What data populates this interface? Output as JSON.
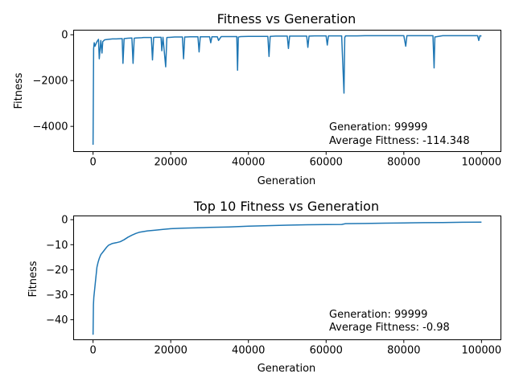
{
  "colors": {
    "series": "#1f77b4",
    "axes": "#000000",
    "background": "#ffffff"
  },
  "chart_data": [
    {
      "type": "line",
      "title": "Fitness vs Generation",
      "xlabel": "Generation",
      "ylabel": "Fitness",
      "xlim": [
        -5000,
        105000
      ],
      "ylim": [
        -5100,
        200
      ],
      "xticks": [
        0,
        20000,
        40000,
        60000,
        80000,
        100000
      ],
      "xtick_labels": [
        "0",
        "20000",
        "40000",
        "60000",
        "80000",
        "100000"
      ],
      "yticks": [
        0,
        -2000,
        -4000
      ],
      "ytick_labels": [
        "0",
        "−2000",
        "−4000"
      ],
      "annotation": [
        "Generation: 99999",
        "Average Fittness: -114.348"
      ],
      "annotation_position": "bottom-right",
      "grid": false,
      "series": [
        {
          "x": [
            0,
            150,
            300,
            500,
            1000,
            1400,
            1600,
            2000,
            2300,
            2500,
            3000,
            4000,
            5000,
            6000,
            7500,
            7700,
            8000,
            9000,
            10000,
            10300,
            10600,
            11000,
            12500,
            13000,
            15000,
            15300,
            15600,
            16000,
            17500,
            17700,
            18000,
            18700,
            19000,
            20000,
            21000,
            22000,
            23000,
            23300,
            23600,
            24000,
            25000,
            27000,
            27300,
            27600,
            28000,
            30000,
            30300,
            30600,
            32000,
            32300,
            33000,
            35000,
            36000,
            37000,
            37200,
            37400,
            38000,
            40000,
            42000,
            43000,
            45000,
            45300,
            45600,
            47000,
            50000,
            50300,
            50600,
            52000,
            55000,
            55300,
            55600,
            57000,
            60000,
            60300,
            60600,
            62000,
            64000,
            64600,
            64800,
            65000,
            66000,
            68000,
            70000,
            75000,
            78000,
            80000,
            80500,
            80800,
            82000,
            84000,
            86000,
            87500,
            87800,
            88000,
            90000,
            92000,
            95000,
            98000,
            99000,
            99300,
            99600,
            99999
          ],
          "y": [
            -4800,
            -600,
            -350,
            -500,
            -300,
            -200,
            -1050,
            -250,
            -800,
            -300,
            -220,
            -200,
            -180,
            -180,
            -170,
            -1250,
            -170,
            -150,
            -140,
            -1250,
            -150,
            -140,
            -130,
            -120,
            -120,
            -1100,
            -120,
            -110,
            -110,
            -700,
            -110,
            -1400,
            -120,
            -110,
            -100,
            -100,
            -100,
            -1050,
            -100,
            -100,
            -90,
            -90,
            -750,
            -90,
            -90,
            -90,
            -350,
            -90,
            -90,
            -250,
            -80,
            -80,
            -80,
            -80,
            -1550,
            -100,
            -80,
            -70,
            -70,
            -70,
            -70,
            -950,
            -70,
            -60,
            -60,
            -600,
            -60,
            -60,
            -60,
            -550,
            -60,
            -50,
            -50,
            -450,
            -50,
            -50,
            -50,
            -2550,
            -120,
            -50,
            -50,
            -50,
            -40,
            -40,
            -40,
            -40,
            -500,
            -40,
            -40,
            -40,
            -40,
            -40,
            -1450,
            -100,
            -40,
            -40,
            -40,
            -40,
            -40,
            -250,
            -40,
            -60
          ]
        }
      ]
    },
    {
      "type": "line",
      "title": "Top 10 Fitness vs Generation",
      "xlabel": "Generation",
      "ylabel": "Fitness",
      "xlim": [
        -5000,
        105000
      ],
      "ylim": [
        -48,
        1.5
      ],
      "xticks": [
        0,
        20000,
        40000,
        60000,
        80000,
        100000
      ],
      "xtick_labels": [
        "0",
        "20000",
        "40000",
        "60000",
        "80000",
        "100000"
      ],
      "yticks": [
        0,
        -10,
        -20,
        -30,
        -40
      ],
      "ytick_labels": [
        "0",
        "−10",
        "−20",
        "−30",
        "−40"
      ],
      "annotation": [
        "Generation: 99999",
        "Average Fittness: -0.98"
      ],
      "annotation_position": "bottom-right",
      "grid": false,
      "series": [
        {
          "x": [
            0,
            100,
            200,
            400,
            600,
            800,
            1000,
            1300,
            1600,
            2000,
            2500,
            3000,
            3500,
            4000,
            5000,
            6000,
            7000,
            8000,
            9000,
            10000,
            11000,
            12000,
            14000,
            16000,
            18000,
            20000,
            23000,
            26000,
            30000,
            35000,
            40000,
            45000,
            50000,
            55000,
            60000,
            64000,
            65000,
            70000,
            75000,
            80000,
            85000,
            90000,
            95000,
            99999
          ],
          "y": [
            -46,
            -34,
            -31,
            -28,
            -25,
            -22,
            -19,
            -17,
            -15.5,
            -14,
            -13,
            -12,
            -11,
            -10.2,
            -9.5,
            -9.2,
            -8.8,
            -8,
            -7,
            -6.2,
            -5.5,
            -5,
            -4.5,
            -4.2,
            -3.9,
            -3.6,
            -3.4,
            -3.3,
            -3.1,
            -2.9,
            -2.6,
            -2.4,
            -2.2,
            -2.05,
            -1.95,
            -1.9,
            -1.6,
            -1.5,
            -1.4,
            -1.3,
            -1.2,
            -1.15,
            -1.05,
            -0.98
          ]
        }
      ]
    }
  ]
}
